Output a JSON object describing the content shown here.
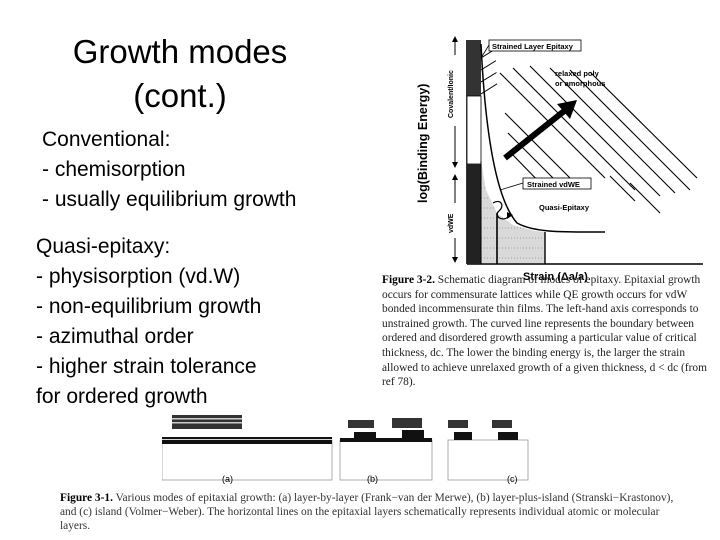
{
  "slide": {
    "title": "Growth modes\n(cont.)",
    "conventional": "Conventional:\n- chemisorption\n- usually equilibrium growth",
    "quasi_epitaxy": "Quasi-epitaxy:\n- physisorption (vd.W)\n- non-equilibrium growth\n- azimuthal order\n- higher strain tolerance\nfor ordered growth"
  },
  "figure_3_2": {
    "y_axis_label": "log(Binding Energy)",
    "x_axis_label": "Strain (Δa/a)",
    "left_axis_top": "Covalent/Ionic",
    "left_axis_bottom": "vdWE",
    "region_strained_layer": "Strained Layer Epitaxy",
    "region_relaxed": "relaxed poly\nor amorphous",
    "region_strained_vdwe": "Strained vdWE",
    "region_quasi": "Quasi-Epitaxy",
    "caption_label": "Figure 3-2.",
    "caption_text": "Schematic diagram of modes of epitaxy. Epitaxial growth occurs for commensurate lattices while QE growth occurs for vdW bonded incommensurate thin films. The left-hand axis corresponds to unstrained growth. The curved line represents the boundary between ordered and disordered growth assuming a particular value of critical thickness, dc. The lower the binding energy is, the larger the strain allowed to achieve unrelaxed growth of a given thickness, d < dc (from ref 78)."
  },
  "figure_3_1": {
    "panel_a": "(a)",
    "panel_b": "(b)",
    "panel_c": "(c)",
    "caption_label": "Figure 3-1.",
    "caption_text": "Various modes of epitaxial growth: (a) layer-by-layer (Frank−van der Merwe), (b) layer-plus-island (Stranski−Krastonov), and (c) island (Volmer−Weber). The horizontal lines on the epitaxial layers schematically represents individual atomic or molecular layers."
  }
}
